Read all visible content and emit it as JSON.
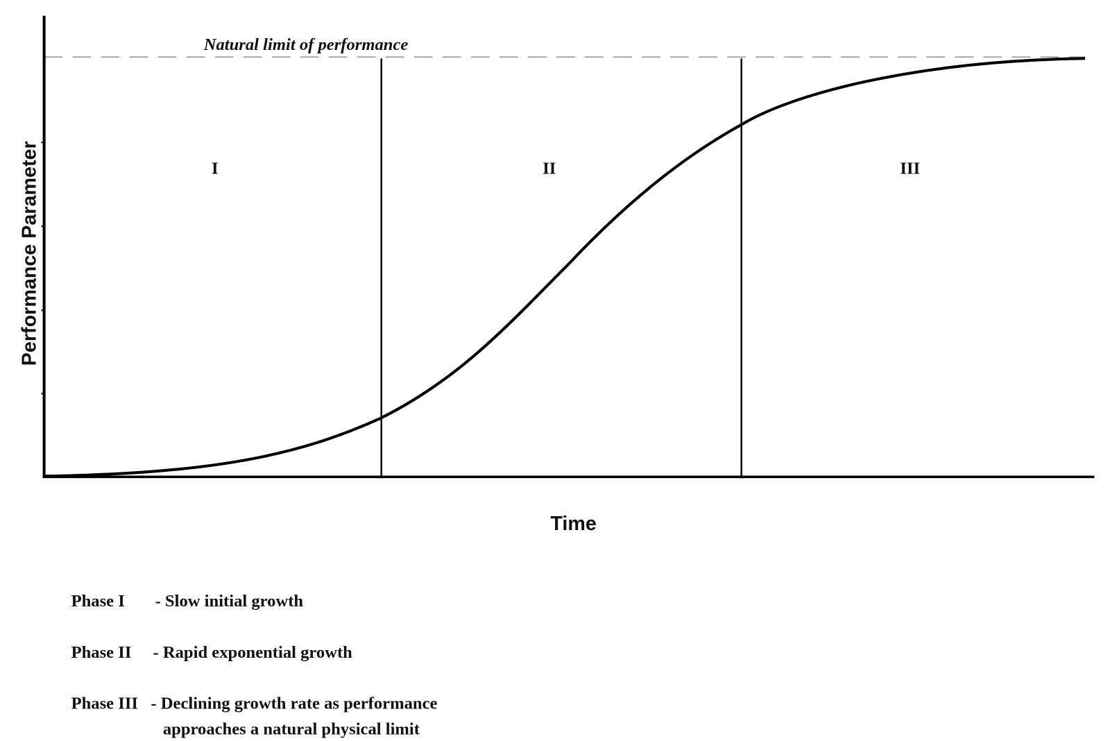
{
  "diagram": {
    "limit_label": "Natural limit of performance",
    "y_axis_label": "Performance Parameter",
    "x_axis_label": "Time",
    "phases": [
      "I",
      "II",
      "III"
    ],
    "legend": [
      {
        "name": "Phase I",
        "text": [
          "- Slow initial growth"
        ]
      },
      {
        "name": "Phase II",
        "text": [
          "- Rapid exponential growth"
        ]
      },
      {
        "name": "Phase III",
        "text": [
          "- Declining growth rate as performance",
          "approaches a natural physical limit"
        ]
      }
    ]
  }
}
